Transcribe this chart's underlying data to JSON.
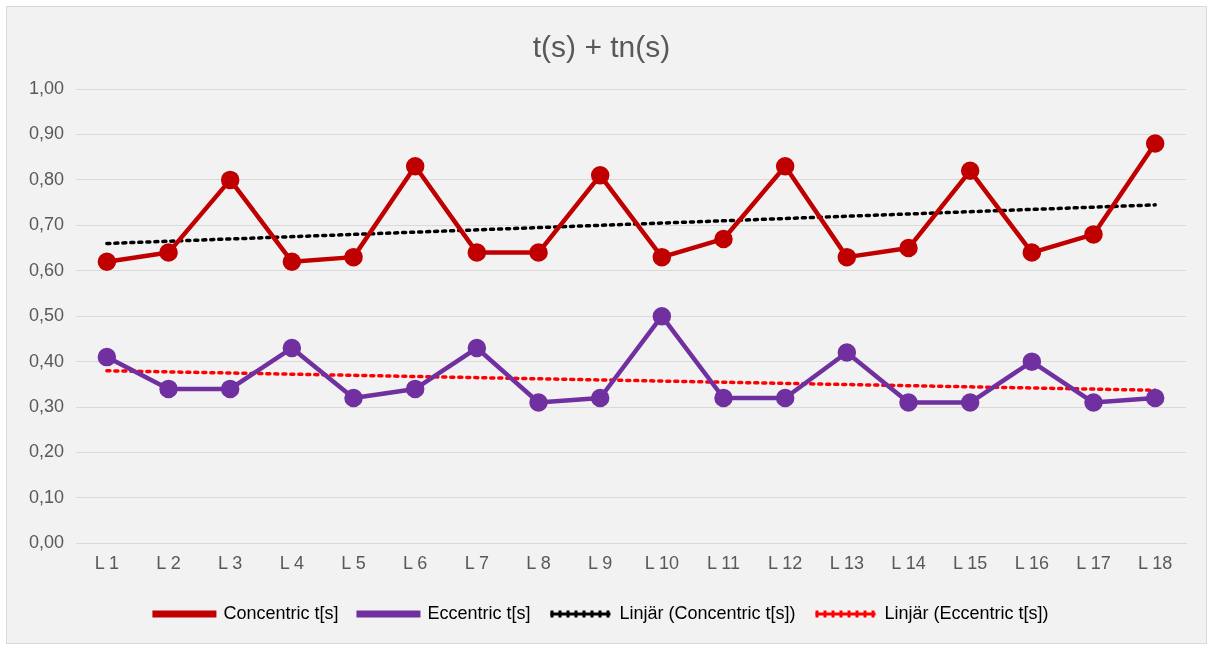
{
  "chart_data": {
    "type": "line",
    "title": "t(s) + tn(s)",
    "categories": [
      "L 1",
      "L 2",
      "L 3",
      "L 4",
      "L 5",
      "L 6",
      "L 7",
      "L 8",
      "L 9",
      "L 10",
      "L 11",
      "L 12",
      "L 13",
      "L 14",
      "L 15",
      "L 16",
      "L 17",
      "L 18"
    ],
    "series": [
      {
        "name": "Concentric t[s]",
        "color": "#c00000",
        "marker": "circle",
        "line_style": "solid",
        "values": [
          0.62,
          0.64,
          0.8,
          0.62,
          0.63,
          0.83,
          0.64,
          0.64,
          0.81,
          0.63,
          0.67,
          0.83,
          0.63,
          0.65,
          0.82,
          0.64,
          0.68,
          0.88
        ]
      },
      {
        "name": "Eccentric t[s]",
        "color": "#7030a0",
        "marker": "circle",
        "line_style": "solid",
        "values": [
          0.41,
          0.34,
          0.34,
          0.43,
          0.32,
          0.34,
          0.43,
          0.31,
          0.32,
          0.5,
          0.32,
          0.32,
          0.42,
          0.31,
          0.31,
          0.4,
          0.31,
          0.32
        ]
      },
      {
        "name": "Linjär (Concentric t[s])",
        "color": "#000000",
        "marker": "none",
        "line_style": "dotted",
        "x": [
          "L 1",
          "L 18"
        ],
        "values": [
          0.66,
          0.745
        ]
      },
      {
        "name": "Linjär (Eccentric t[s])",
        "color": "#ff0000",
        "marker": "none",
        "line_style": "dotted",
        "x": [
          "L 1",
          "L 18"
        ],
        "values": [
          0.38,
          0.337
        ]
      }
    ],
    "ylim": [
      0,
      1
    ],
    "yticks": [
      {
        "value": 0,
        "label": "0,00"
      },
      {
        "value": 0.1,
        "label": "0,10"
      },
      {
        "value": 0.2,
        "label": "0,20"
      },
      {
        "value": 0.3,
        "label": "0,30"
      },
      {
        "value": 0.4,
        "label": "0,40"
      },
      {
        "value": 0.5,
        "label": "0,50"
      },
      {
        "value": 0.6,
        "label": "0,60"
      },
      {
        "value": 0.7,
        "label": "0,70"
      },
      {
        "value": 0.8,
        "label": "0,80"
      },
      {
        "value": 0.9,
        "label": "0,90"
      },
      {
        "value": 1,
        "label": "1,00"
      }
    ],
    "grid": "y",
    "legend": "bottom"
  }
}
